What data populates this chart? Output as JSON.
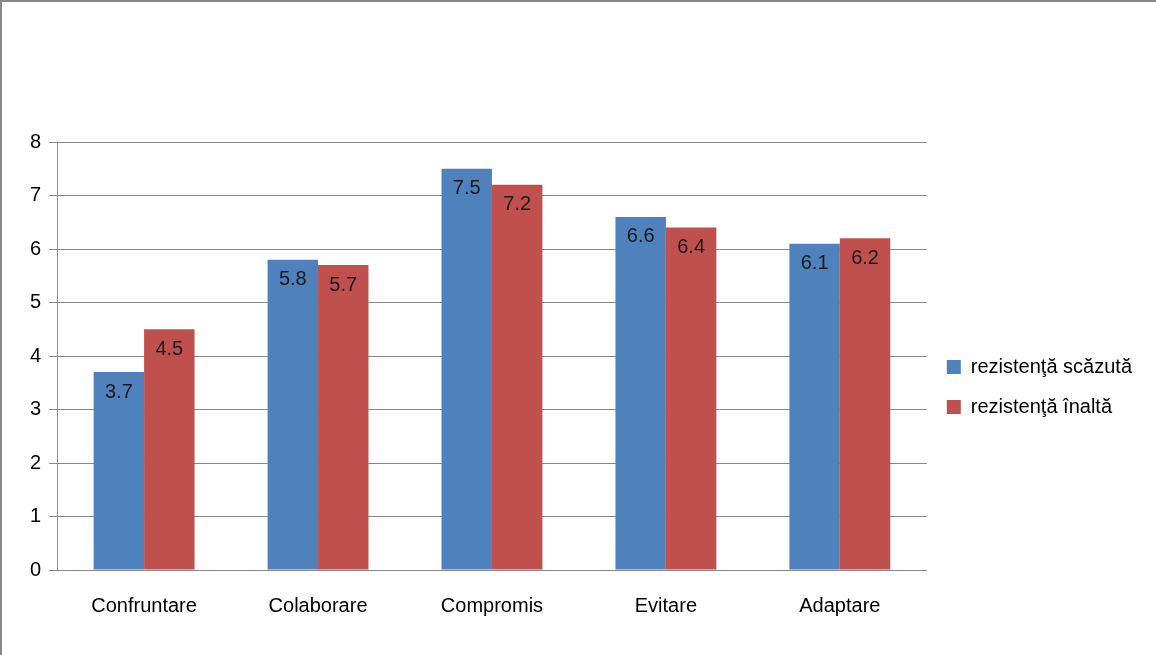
{
  "chart_data": {
    "type": "bar",
    "categories": [
      "Confruntare",
      "Colaborare",
      "Compromis",
      "Evitare",
      "Adaptare"
    ],
    "series": [
      {
        "name": "rezistenţă scăzută",
        "color": "#4f81bd",
        "values": [
          3.7,
          5.8,
          7.5,
          6.6,
          6.1
        ]
      },
      {
        "name": "rezistenţă înaltă",
        "color": "#c0504d",
        "values": [
          4.5,
          5.7,
          7.2,
          6.4,
          6.2
        ]
      }
    ],
    "ylim": [
      0,
      8
    ],
    "yticks": [
      0,
      1,
      2,
      3,
      4,
      5,
      6,
      7,
      8
    ],
    "grid": "y",
    "legend": "right",
    "data_labels": true
  }
}
